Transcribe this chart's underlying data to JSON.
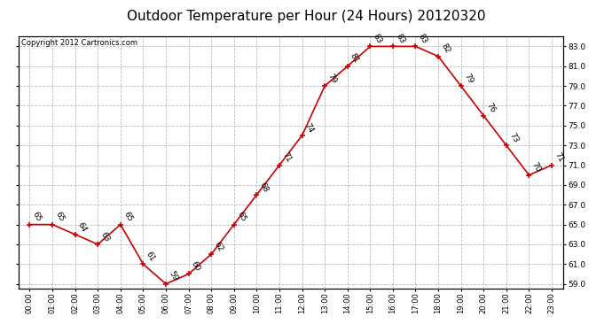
{
  "title": "Outdoor Temperature per Hour (24 Hours) 20120320",
  "copyright": "Copyright 2012 Cartronics.com",
  "hours": [
    "00:00",
    "01:00",
    "02:00",
    "03:00",
    "04:00",
    "05:00",
    "06:00",
    "07:00",
    "08:00",
    "09:00",
    "10:00",
    "11:00",
    "12:00",
    "13:00",
    "14:00",
    "15:00",
    "16:00",
    "17:00",
    "18:00",
    "19:00",
    "20:00",
    "21:00",
    "22:00",
    "23:00"
  ],
  "temps": [
    65,
    65,
    64,
    63,
    65,
    61,
    59,
    60,
    62,
    65,
    68,
    71,
    74,
    79,
    81,
    83,
    83,
    83,
    82,
    79,
    76,
    73,
    70,
    71
  ],
  "ylim": [
    58.5,
    84.0
  ],
  "yticks": [
    59.0,
    61.0,
    63.0,
    65.0,
    67.0,
    69.0,
    71.0,
    73.0,
    75.0,
    77.0,
    79.0,
    81.0,
    83.0
  ],
  "line_color": "#cc0000",
  "marker_color": "#cc0000",
  "bg_color": "#ffffff",
  "plot_bg_color": "#ffffff",
  "grid_color": "#bbbbbb",
  "title_fontsize": 11,
  "label_fontsize": 6.5,
  "copyright_fontsize": 6
}
